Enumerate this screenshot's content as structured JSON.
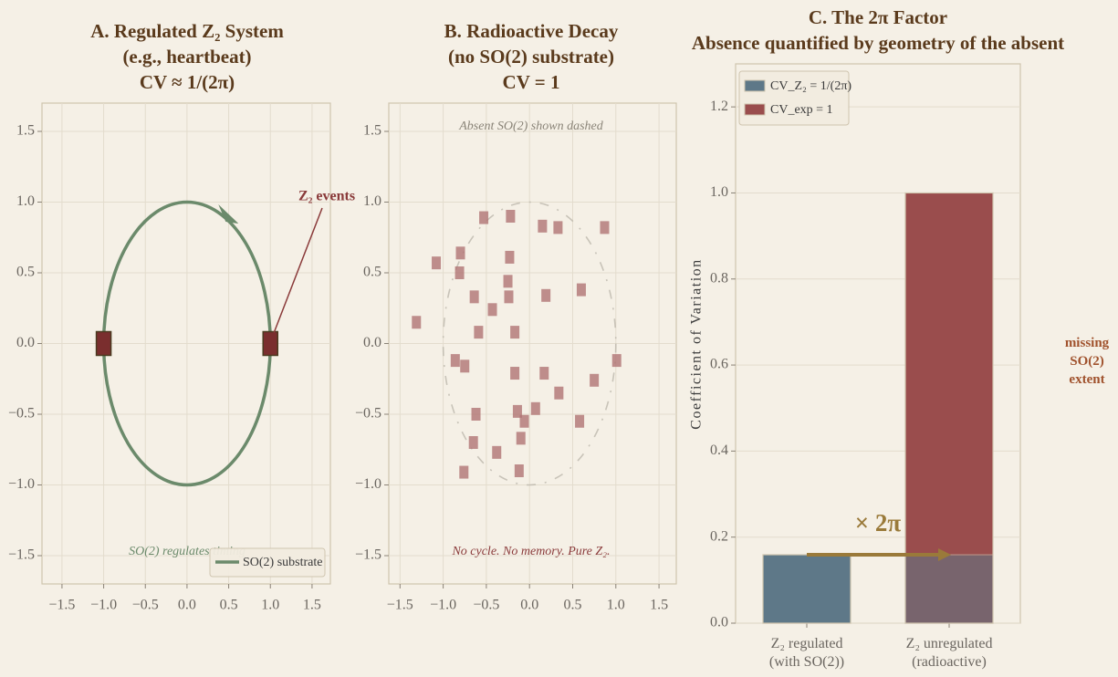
{
  "chart_data": [
    {
      "type": "scatter",
      "title": "A.  Regulated Z₂ System\n(e.g., heartbeat)\nCV ≈ 1/(2π)",
      "xlim": [
        -1.74,
        1.72
      ],
      "ylim": [
        -1.7,
        1.7
      ],
      "xticks": [
        {
          "value": -1.5,
          "label": "−1.5"
        },
        {
          "value": -1,
          "label": "−1.0"
        },
        {
          "value": -0.5,
          "label": "−0.5"
        },
        {
          "value": 0,
          "label": "0.0"
        },
        0.5,
        {
          "value": 1,
          "label": "1.0"
        },
        1.5
      ],
      "yticks": [
        {
          "value": -1.5,
          "label": "−1.5"
        },
        {
          "value": -1,
          "label": "−1.0"
        },
        {
          "value": -0.5,
          "label": "−0.5"
        },
        {
          "value": 0,
          "label": "0.0"
        },
        0.5,
        {
          "value": 1,
          "label": "1.0"
        },
        1.5
      ],
      "circle": {
        "name": "SO(2) substrate",
        "radius": 1,
        "color": "#6b8a6b"
      },
      "points": {
        "x": [
          -1,
          1
        ],
        "y": [
          0,
          0
        ],
        "color": "#7a2e2e"
      },
      "annotations": [
        "Z₂ events",
        "SO(2) regulates timing"
      ],
      "legend": "lower right",
      "grid": true
    },
    {
      "type": "scatter",
      "title": "B.  Radioactive Decay\n(no SO(2) substrate)\nCV = 1",
      "xlim": [
        -1.63,
        1.7
      ],
      "ylim": [
        -1.7,
        1.7
      ],
      "xticks": [
        {
          "value": -1.5,
          "label": "−1.5"
        },
        {
          "value": -1,
          "label": "−1.0"
        },
        {
          "value": -0.5,
          "label": "−0.5"
        },
        {
          "value": 0,
          "label": "0.0"
        },
        0.5,
        {
          "value": 1,
          "label": "1.0"
        },
        1.5
      ],
      "yticks": [
        {
          "value": -1.5,
          "label": "−1.5"
        },
        {
          "value": -1,
          "label": "−1.0"
        },
        {
          "value": -0.5,
          "label": "−0.5"
        },
        {
          "value": 0,
          "label": "0.0"
        },
        0.5,
        {
          "value": 1,
          "label": "1.0"
        },
        1.5
      ],
      "circle": {
        "radius": 1,
        "color": "#bdb8ad",
        "dashed": true
      },
      "points": {
        "x": [
          -0.53,
          -0.22,
          0.15,
          0.33,
          0.87,
          -0.8,
          -1.08,
          -0.81,
          -0.23,
          -0.25,
          -0.64,
          -0.24,
          0.19,
          0.6,
          -0.43,
          -1.31,
          -0.59,
          -0.17,
          -0.86,
          -0.75,
          -0.17,
          0.17,
          0.75,
          1.01,
          0.34,
          -0.62,
          -0.14,
          -0.06,
          0.07,
          0.58,
          -0.65,
          -0.1,
          -0.38,
          -0.76,
          -0.12
        ],
        "y": [
          0.89,
          0.9,
          0.83,
          0.82,
          0.82,
          0.64,
          0.57,
          0.5,
          0.61,
          0.44,
          0.33,
          0.33,
          0.34,
          0.38,
          0.24,
          0.15,
          0.08,
          0.08,
          -0.12,
          -0.16,
          -0.21,
          -0.21,
          -0.26,
          -0.12,
          -0.35,
          -0.5,
          -0.48,
          -0.55,
          -0.46,
          -0.55,
          -0.7,
          -0.67,
          -0.77,
          -0.91,
          -0.9
        ],
        "color": "#b07474"
      },
      "annotations": [
        "Absent SO(2) shown dashed",
        "No cycle. No memory. Pure Z₂."
      ],
      "grid": true
    },
    {
      "type": "bar",
      "title": "C.  The 2π Factor\nAbsence quantified by geometry of the absent",
      "ylabel": "Coefficient of Variation",
      "categories": [
        "Z₂ regulated\n(with SO(2))",
        "Z₂ unregulated\n(radioactive)"
      ],
      "series": [
        {
          "name": "CV_Z₂ = 1/(2π)",
          "color": "#5e7888",
          "values": [
            0.159,
            0.159
          ]
        },
        {
          "name": "CV_exp = 1",
          "color": "#9a4d4d",
          "values": [
            null,
            1
          ]
        }
      ],
      "ylim": [
        0,
        1.3
      ],
      "yticks": [
        {
          "value": 0,
          "label": "0.0"
        },
        0.2,
        0.4,
        0.6,
        0.8,
        {
          "value": 1,
          "label": "1.0"
        },
        1.2
      ],
      "annotations": [
        "× 2π",
        "missing\nSO(2)\nextent"
      ],
      "legend": "upper left",
      "grid": true
    }
  ]
}
